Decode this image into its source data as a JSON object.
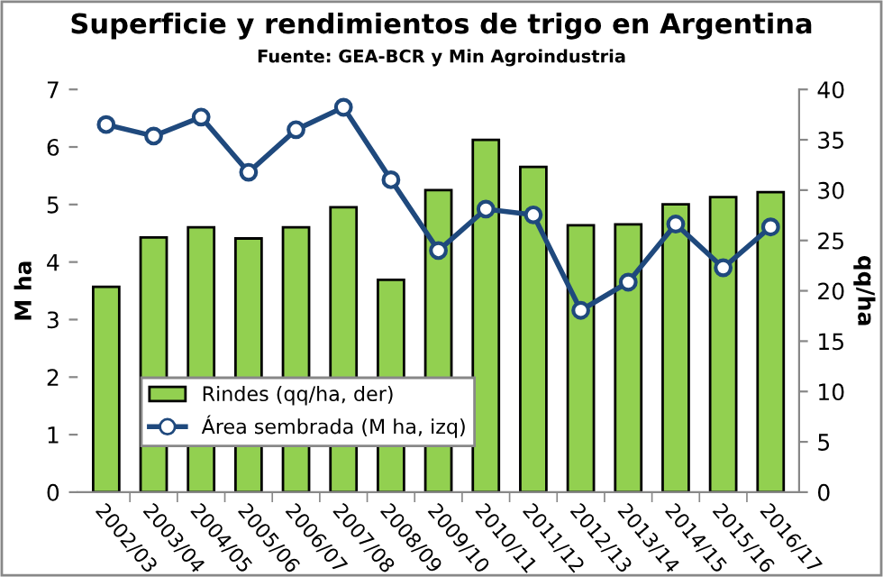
{
  "chart_data": {
    "type": "bar",
    "title": "Superficie y rendimientos de trigo en Argentina",
    "subtitle": "Fuente: GEA-BCR y Min Agroindustria",
    "categories": [
      "2002/03",
      "2003/04",
      "2004/05",
      "2005/06",
      "2006/07",
      "2007/08",
      "2008/09",
      "2009/10",
      "2010/11",
      "2011/12",
      "2012/13",
      "2013/14",
      "2014/15",
      "2015/16",
      "2016/17"
    ],
    "series": [
      {
        "name": "Rindes (qq/ha, der)",
        "axis": "y2",
        "color": "#92d050",
        "values": [
          20.4,
          25.3,
          26.3,
          25.2,
          26.3,
          28.3,
          21.1,
          30.0,
          35.0,
          32.3,
          26.5,
          26.6,
          28.6,
          29.3,
          29.8
        ]
      },
      {
        "name": "Área sembrada (M ha, izq)",
        "type": "line",
        "axis": "y",
        "color": "#1f497d",
        "marker": "circle",
        "values": [
          6.39,
          6.19,
          6.52,
          5.56,
          6.3,
          6.69,
          5.43,
          4.2,
          4.92,
          4.82,
          3.16,
          3.65,
          4.66,
          3.9,
          4.61
        ]
      }
    ],
    "ylabel": "M ha",
    "y2label": "qq/ha",
    "ylim": [
      0,
      7
    ],
    "yticks": [
      0,
      1,
      2,
      3,
      4,
      5,
      6,
      7
    ],
    "y2lim": [
      0,
      40
    ],
    "y2ticks": [
      0,
      5,
      10,
      15,
      20,
      25,
      30,
      35,
      40
    ],
    "legend": "bottom left",
    "grid": false
  }
}
